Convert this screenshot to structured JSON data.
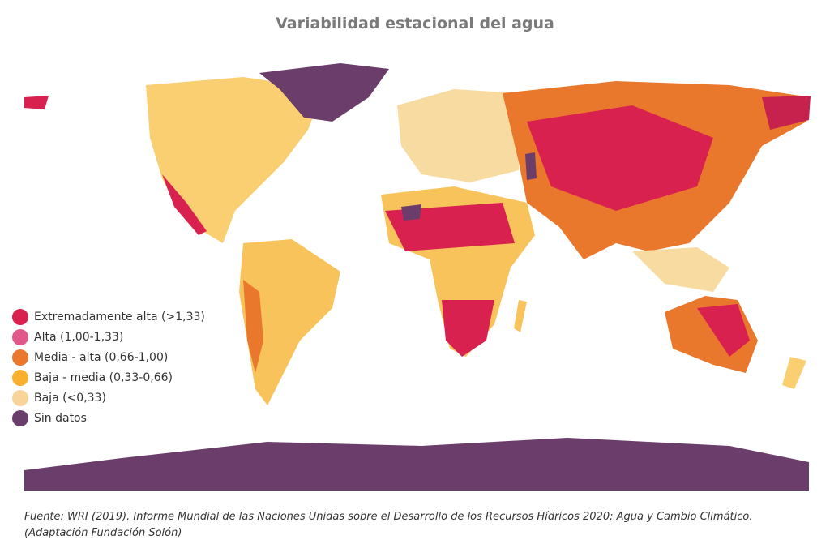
{
  "title": "Variabilidad estacional del agua",
  "legend": [
    {
      "label": "Extremadamente alta (>1,33)",
      "color": "#d9214f"
    },
    {
      "label": "Alta (1,00-1,33)",
      "color": "#e0578a"
    },
    {
      "label": "Media - alta (0,66-1,00)",
      "color": "#e9772c"
    },
    {
      "label": "Baja - media (0,33-0,66)",
      "color": "#f9b02e"
    },
    {
      "label": "Baja (<0,33)",
      "color": "#f9d49a"
    },
    {
      "label": "Sin datos",
      "color": "#6b3d6b"
    }
  ],
  "source": "Fuente: WRI (2019). Informe Mundial de las Naciones Unidas sobre el Desarrollo de los Recursos Hídricos 2020: Agua y Cambio Climático.",
  "source_note": "(Adaptación Fundación Solón)"
}
